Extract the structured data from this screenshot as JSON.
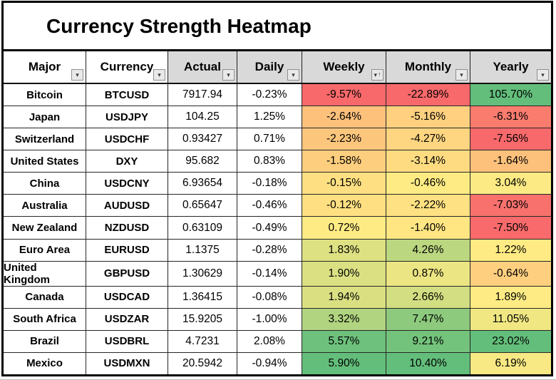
{
  "chart_data": {
    "type": "heatmap",
    "title": "Currency Strength Heatmap",
    "columns": [
      "Major",
      "Currency",
      "Actual",
      "Daily",
      "Weekly",
      "Monthly",
      "Yearly"
    ],
    "heat_columns": [
      "Weekly",
      "Monthly",
      "Yearly"
    ],
    "color_scale": {
      "min": "#F8696B",
      "mid": "#FFEB84",
      "max": "#63BE7B"
    },
    "rows": [
      {
        "major": "Bitcoin",
        "currency": "BTCUSD",
        "actual": "7917.94",
        "daily": "-0.23%",
        "weekly": "-9.57%",
        "monthly": "-22.89%",
        "yearly": "105.70%",
        "weekly_bg": "#F8696B",
        "monthly_bg": "#F8696B",
        "yearly_bg": "#63BE7B"
      },
      {
        "major": "Japan",
        "currency": "USDJPY",
        "actual": "104.25",
        "daily": "1.25%",
        "weekly": "-2.64%",
        "monthly": "-5.16%",
        "yearly": "-6.31%",
        "weekly_bg": "#FDC17C",
        "monthly_bg": "#FED07F",
        "yearly_bg": "#F97C6F"
      },
      {
        "major": "Switzerland",
        "currency": "USDCHF",
        "actual": "0.93427",
        "daily": "0.71%",
        "weekly": "-2.23%",
        "monthly": "-4.27%",
        "yearly": "-7.56%",
        "weekly_bg": "#FDC67D",
        "monthly_bg": "#FED580",
        "yearly_bg": "#F8696B"
      },
      {
        "major": "United States",
        "currency": "DXY",
        "actual": "95.682",
        "daily": "0.83%",
        "weekly": "-1.58%",
        "monthly": "-3.14%",
        "yearly": "-1.64%",
        "weekly_bg": "#FDCE7E",
        "monthly_bg": "#FEDB81",
        "yearly_bg": "#FDC17C"
      },
      {
        "major": "China",
        "currency": "USDCNY",
        "actual": "6.93654",
        "daily": "-0.18%",
        "weekly": "-0.15%",
        "monthly": "-0.46%",
        "yearly": "3.04%",
        "weekly_bg": "#FEE082",
        "monthly_bg": "#FFEB84",
        "yearly_bg": "#FCEA84"
      },
      {
        "major": "Australia",
        "currency": "AUDUSD",
        "actual": "0.65647",
        "daily": "-0.46%",
        "weekly": "-0.12%",
        "monthly": "-2.22%",
        "yearly": "-7.03%",
        "weekly_bg": "#FEE082",
        "monthly_bg": "#FEE182",
        "yearly_bg": "#F8716D"
      },
      {
        "major": "New Zealand",
        "currency": "NZDUSD",
        "actual": "0.63109",
        "daily": "-0.49%",
        "weekly": "0.72%",
        "monthly": "-1.40%",
        "yearly": "-7.50%",
        "weekly_bg": "#FFEB84",
        "monthly_bg": "#FFE683",
        "yearly_bg": "#F86A6B"
      },
      {
        "major": "Euro Area",
        "currency": "EURUSD",
        "actual": "1.1375",
        "daily": "-0.28%",
        "weekly": "1.83%",
        "monthly": "4.26%",
        "yearly": "1.22%",
        "weekly_bg": "#DEE182",
        "monthly_bg": "#BBD780",
        "yearly_bg": "#FFEB84"
      },
      {
        "major": "United Kingdom",
        "currency": "GBPUSD",
        "actual": "1.30629",
        "daily": "-0.14%",
        "weekly": "1.90%",
        "monthly": "0.87%",
        "yearly": "-0.64%",
        "weekly_bg": "#DBE182",
        "monthly_bg": "#ECE583",
        "yearly_bg": "#FECF7F"
      },
      {
        "major": "Canada",
        "currency": "USDCAD",
        "actual": "1.36415",
        "daily": "-0.08%",
        "weekly": "1.94%",
        "monthly": "2.66%",
        "yearly": "1.89%",
        "weekly_bg": "#DAE082",
        "monthly_bg": "#D2DE81",
        "yearly_bg": "#FEEB84"
      },
      {
        "major": "South Africa",
        "currency": "USDZAR",
        "actual": "15.9205",
        "daily": "-1.00%",
        "weekly": "3.32%",
        "monthly": "7.47%",
        "yearly": "11.05%",
        "weekly_bg": "#B1D480",
        "monthly_bg": "#8DCA7D",
        "yearly_bg": "#F0E783"
      },
      {
        "major": "Brazil",
        "currency": "USDBRL",
        "actual": "4.7231",
        "daily": "2.08%",
        "weekly": "5.57%",
        "monthly": "9.21%",
        "yearly": "23.02%",
        "weekly_bg": "#6DC17C",
        "monthly_bg": "#74C37C",
        "yearly_bg": "#63BE7B"
      },
      {
        "major": "Mexico",
        "currency": "USDMXN",
        "actual": "20.5942",
        "daily": "-0.94%",
        "weekly": "5.90%",
        "monthly": "10.40%",
        "yearly": "6.19%",
        "weekly_bg": "#63BE7B",
        "monthly_bg": "#63BE7B",
        "yearly_bg": "#F8E984"
      }
    ]
  },
  "table": {
    "fields": [
      "major",
      "currency",
      "actual",
      "daily",
      "weekly",
      "monthly",
      "yearly"
    ],
    "bold_fields": [
      "major",
      "currency"
    ],
    "heat_fields": [
      "weekly",
      "monthly",
      "yearly"
    ],
    "header": [
      {
        "key": "major",
        "label": "Major",
        "shaded": false,
        "sorted": false
      },
      {
        "key": "currency",
        "label": "Currency",
        "shaded": false,
        "sorted": false
      },
      {
        "key": "actual",
        "label": "Actual",
        "shaded": true,
        "sorted": false
      },
      {
        "key": "daily",
        "label": "Daily",
        "shaded": true,
        "sorted": false
      },
      {
        "key": "weekly",
        "label": "Weekly",
        "shaded": true,
        "sorted": true
      },
      {
        "key": "monthly",
        "label": "Monthly",
        "shaded": true,
        "sorted": false
      },
      {
        "key": "yearly",
        "label": "Yearly",
        "shaded": true,
        "sorted": false
      }
    ]
  },
  "colors": {
    "header_bg": "#D9D9D9",
    "grid_line": "#262626",
    "frame": "#000000"
  },
  "icons": {
    "filter_dropdown": "▾",
    "sort_ascending": "↑"
  }
}
